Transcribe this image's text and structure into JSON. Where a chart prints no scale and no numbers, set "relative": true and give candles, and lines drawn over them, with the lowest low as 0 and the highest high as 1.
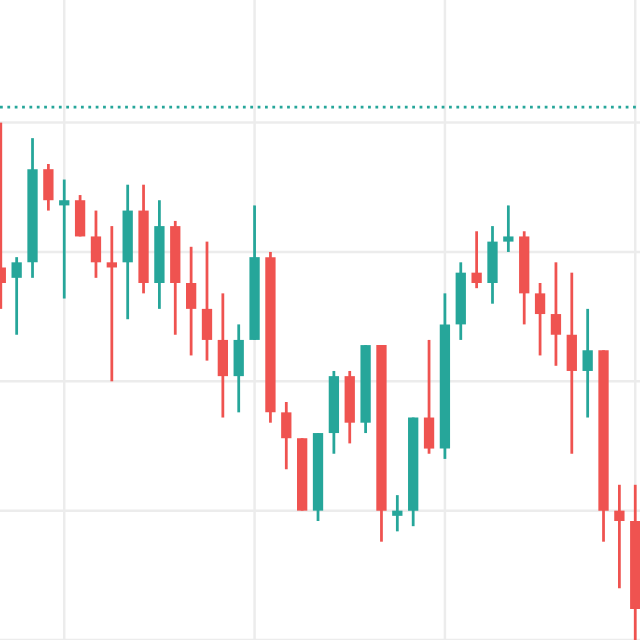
{
  "chart_data": {
    "type": "candlestick",
    "relative": true,
    "grid": true,
    "categories": [
      null,
      null,
      null,
      null,
      null,
      null,
      null,
      null,
      null,
      null,
      null,
      null,
      null,
      null,
      null,
      null,
      null,
      null,
      null,
      null,
      null,
      null,
      null,
      null,
      null,
      null,
      null,
      null,
      null,
      null,
      null,
      null,
      null,
      null,
      null,
      null,
      null,
      null,
      null,
      null,
      null
    ],
    "ohlc": [
      [
        0.72,
        1.0,
        0.64,
        0.69
      ],
      [
        0.7,
        0.74,
        0.59,
        0.73
      ],
      [
        0.73,
        0.97,
        0.7,
        0.91
      ],
      [
        0.91,
        0.92,
        0.83,
        0.85
      ],
      [
        0.84,
        0.89,
        0.66,
        0.85
      ],
      [
        0.85,
        0.86,
        0.78,
        0.78
      ],
      [
        0.78,
        0.83,
        0.7,
        0.73
      ],
      [
        0.73,
        0.8,
        0.5,
        0.72
      ],
      [
        0.73,
        0.88,
        0.62,
        0.83
      ],
      [
        0.83,
        0.88,
        0.67,
        0.69
      ],
      [
        0.69,
        0.85,
        0.64,
        0.8
      ],
      [
        0.8,
        0.81,
        0.59,
        0.69
      ],
      [
        0.69,
        0.76,
        0.55,
        0.64
      ],
      [
        0.64,
        0.77,
        0.54,
        0.58
      ],
      [
        0.58,
        0.67,
        0.43,
        0.51
      ],
      [
        0.51,
        0.61,
        0.44,
        0.58
      ],
      [
        0.58,
        0.84,
        0.58,
        0.74
      ],
      [
        0.74,
        0.75,
        0.42,
        0.44
      ],
      [
        0.44,
        0.46,
        0.33,
        0.39
      ],
      [
        0.39,
        0.39,
        0.25,
        0.25
      ],
      [
        0.25,
        0.4,
        0.23,
        0.4
      ],
      [
        0.4,
        0.52,
        0.36,
        0.51
      ],
      [
        0.51,
        0.52,
        0.38,
        0.42
      ],
      [
        0.42,
        0.57,
        0.4,
        0.57
      ],
      [
        0.57,
        0.57,
        0.19,
        0.25
      ],
      [
        0.24,
        0.28,
        0.21,
        0.25
      ],
      [
        0.25,
        0.43,
        0.22,
        0.43
      ],
      [
        0.43,
        0.58,
        0.36,
        0.37
      ],
      [
        0.37,
        0.67,
        0.35,
        0.61
      ],
      [
        0.61,
        0.73,
        0.58,
        0.71
      ],
      [
        0.71,
        0.79,
        0.68,
        0.69
      ],
      [
        0.69,
        0.8,
        0.65,
        0.77
      ],
      [
        0.77,
        0.84,
        0.75,
        0.78
      ],
      [
        0.78,
        0.79,
        0.61,
        0.67
      ],
      [
        0.67,
        0.69,
        0.55,
        0.63
      ],
      [
        0.63,
        0.73,
        0.53,
        0.59
      ],
      [
        0.59,
        0.71,
        0.36,
        0.52
      ],
      [
        0.52,
        0.64,
        0.43,
        0.56
      ],
      [
        0.56,
        0.56,
        0.19,
        0.25
      ],
      [
        0.25,
        0.3,
        0.1,
        0.23
      ],
      [
        0.23,
        0.3,
        0.0,
        0.06
      ]
    ],
    "colors": [
      "#ef5350",
      "#26a69a",
      "#26a69a",
      "#ef5350",
      "#26a69a",
      "#ef5350",
      "#ef5350",
      "#ef5350",
      "#26a69a",
      "#ef5350",
      "#26a69a",
      "#ef5350",
      "#ef5350",
      "#ef5350",
      "#ef5350",
      "#26a69a",
      "#26a69a",
      "#ef5350",
      "#ef5350",
      "#ef5350",
      "#26a69a",
      "#26a69a",
      "#ef5350",
      "#26a69a",
      "#ef5350",
      "#26a69a",
      "#26a69a",
      "#ef5350",
      "#26a69a",
      "#26a69a",
      "#ef5350",
      "#26a69a",
      "#26a69a",
      "#ef5350",
      "#ef5350",
      "#ef5350",
      "#ef5350",
      "#26a69a",
      "#ef5350",
      "#ef5350",
      "#ef5350"
    ],
    "ref_lines": [
      {
        "axis": "y",
        "value": 1.03,
        "label": null,
        "color": "#26a69a",
        "line_style": "dotted"
      }
    ]
  }
}
